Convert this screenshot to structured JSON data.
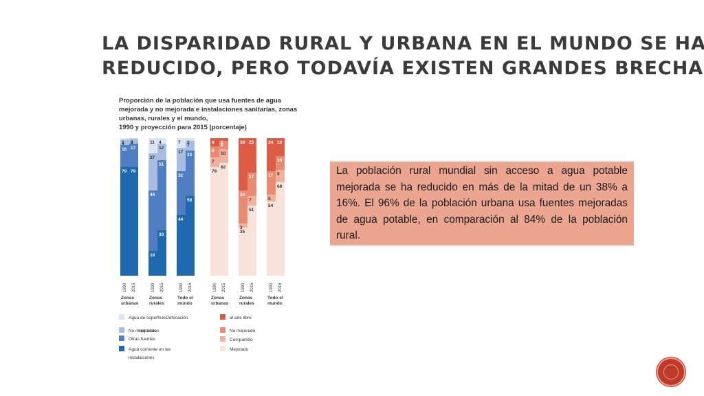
{
  "slide": {
    "title_line1": "La disparidad rural y urbana en el mundo se ha",
    "title_line2": "reducido, pero todavía existen grandes brechas",
    "callout": "La población rural mundial sin acceso a agua potable mejorada se ha reducido en más de la mitad de un 38% a 16%. El 96% de la población urbana usa fuentes mejoradas de agua potable, en comparación al 84% de la población rural."
  },
  "chart_data": {
    "type": "bar",
    "stacked": true,
    "title_lines": [
      "Proporción de la población que usa fuentes de agua",
      "mejorada y no mejorada e instalaciones sanitarias, zonas",
      "urbanas, rurales y el mundo,",
      "1990 y proyección para 2015 (porcentaje)"
    ],
    "ylim": [
      0,
      100
    ],
    "years": [
      "1990",
      "2015"
    ],
    "water": {
      "groups": [
        "Zonas urbanas",
        "Zonas rurales",
        "Todo el mundo"
      ],
      "series": [
        {
          "name": "Agua corriente en las instalaciones",
          "color": "#1e69ae",
          "values": [
            [
              79,
              79
            ],
            [
              18,
              33
            ],
            [
              44,
              58
            ]
          ]
        },
        {
          "name": "Otras fuentes",
          "color": "#4f7fc2",
          "values": [
            [
              16,
              17
            ],
            [
              44,
              51
            ],
            [
              32,
              33
            ]
          ]
        },
        {
          "name": "No mejoradas",
          "color": "#a9bde3",
          "values": [
            [
              4,
              4
            ],
            [
              27,
              12
            ],
            [
              17,
              7
            ]
          ]
        },
        {
          "name": "Agua de superficie",
          "color": "#dde4f3",
          "values": [
            [
              1,
              0
            ],
            [
              11,
              4
            ],
            [
              7,
              2
            ]
          ]
        }
      ]
    },
    "sanitation": {
      "groups": [
        "Zonas urbanas",
        "Zonas rurales",
        "Todo el mundo"
      ],
      "series": [
        {
          "name": "Mejorado",
          "color": "#f8e2d9",
          "values": [
            [
              79,
              82
            ],
            [
              35,
              51
            ],
            [
              54,
              68
            ]
          ]
        },
        {
          "name": "Compartido",
          "color": "#f1b19f",
          "values": [
            [
              7,
              10
            ],
            [
              3,
              7
            ],
            [
              5,
              9
            ]
          ]
        },
        {
          "name": "No mejorado",
          "color": "#e98b73",
          "values": [
            [
              8,
              6
            ],
            [
              24,
              17
            ],
            [
              17,
              10
            ]
          ]
        },
        {
          "name": "Defecación al aire libre",
          "color": "#dd5c46",
          "values": [
            [
              6,
              2
            ],
            [
              38,
              25
            ],
            [
              24,
              13
            ]
          ]
        }
      ]
    },
    "legend": [
      {
        "text": "Agua de superficie",
        "color": "#dde4f3"
      },
      {
        "text": "Defecación",
        "color": "#dd5c46"
      },
      {
        "text": "al aire libre",
        "color": "#dd5c46"
      },
      {
        "text": "No mejoradas",
        "color": "#a9bde3"
      },
      {
        "text": "No mejorado",
        "color": "#e98b73"
      },
      {
        "text": "Otras fuentes",
        "color": "#4f7fc2"
      },
      {
        "text": "mejoradas",
        "color": "#4f7fc2"
      },
      {
        "text": "Compartido",
        "color": "#f1b19f"
      },
      {
        "text": "Agua corriente en las",
        "color": "#1e69ae"
      },
      {
        "text": "instalaciones",
        "color": "#1e69ae"
      },
      {
        "text": "Mejorado",
        "color": "#f8e2d9"
      }
    ]
  }
}
